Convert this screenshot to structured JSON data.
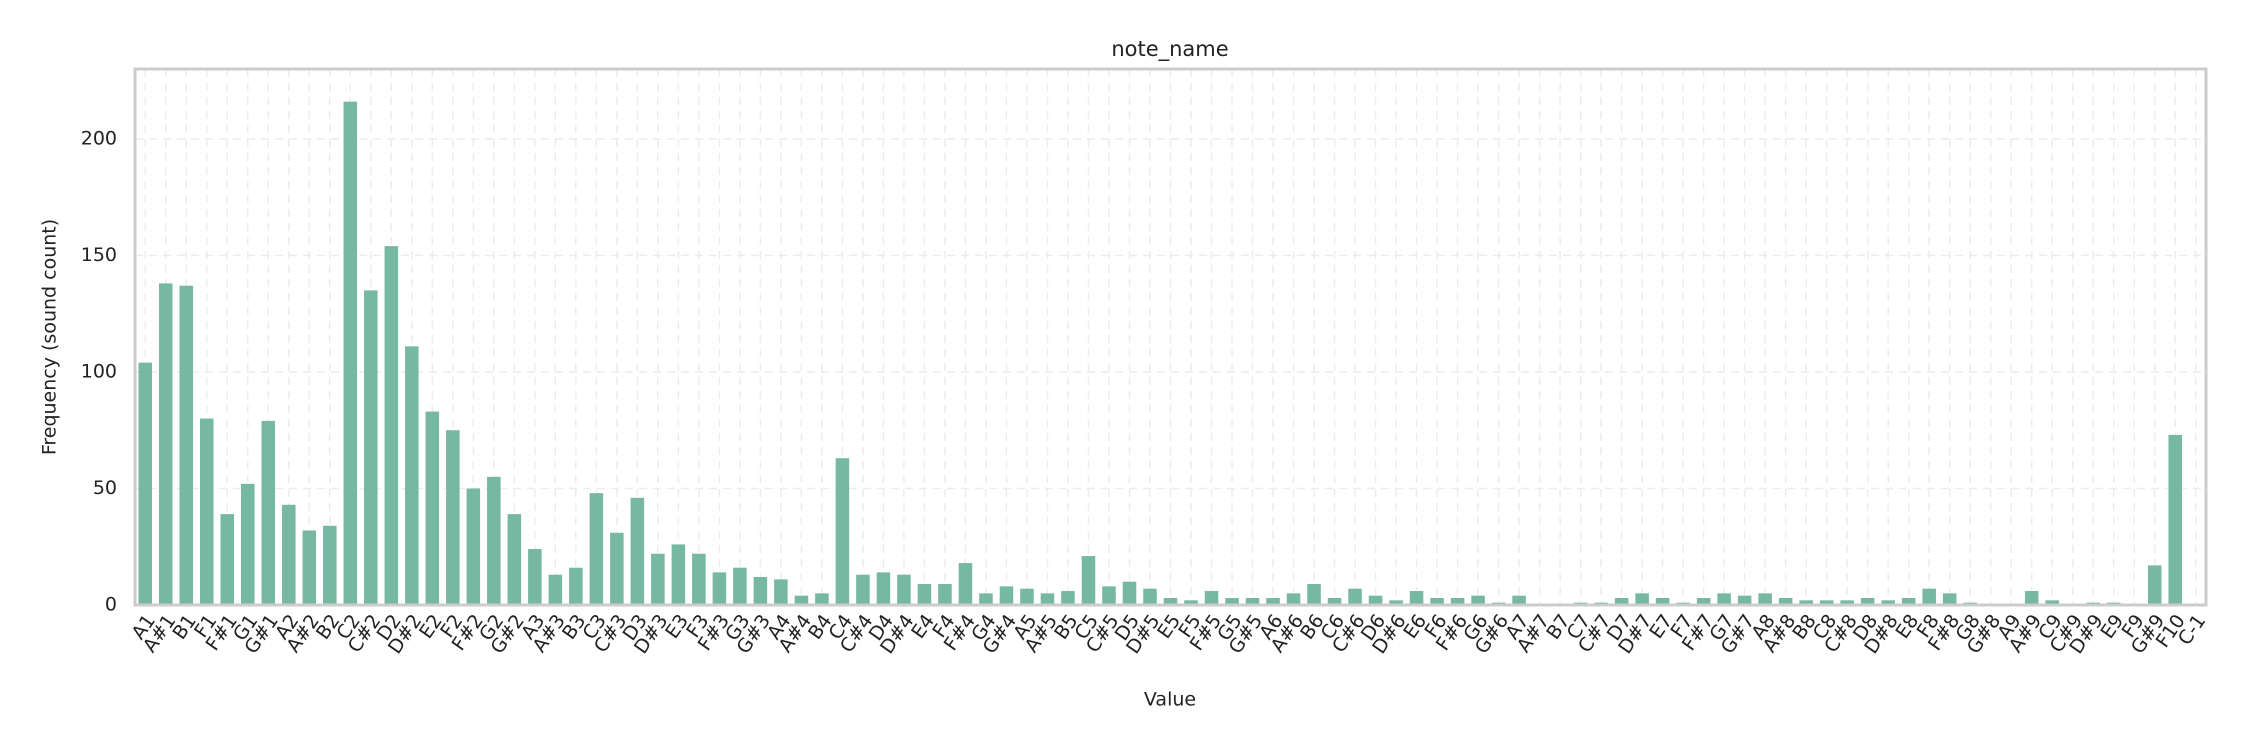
{
  "chart_data": {
    "type": "bar",
    "title": "note_name",
    "xlabel": "Value",
    "ylabel": "Frequency (sound count)",
    "categories": [
      "A1",
      "A#1",
      "B1",
      "F1",
      "F#1",
      "G1",
      "G#1",
      "A2",
      "A#2",
      "B2",
      "C2",
      "C#2",
      "D2",
      "D#2",
      "E2",
      "F2",
      "F#2",
      "G2",
      "G#2",
      "A3",
      "A#3",
      "B3",
      "C3",
      "C#3",
      "D3",
      "D#3",
      "E3",
      "F3",
      "F#3",
      "G3",
      "G#3",
      "A4",
      "A#4",
      "B4",
      "C4",
      "C#4",
      "D4",
      "D#4",
      "E4",
      "F4",
      "F#4",
      "G4",
      "G#4",
      "A5",
      "A#5",
      "B5",
      "C5",
      "C#5",
      "D5",
      "D#5",
      "E5",
      "F5",
      "F#5",
      "G5",
      "G#5",
      "A6",
      "A#6",
      "B6",
      "C6",
      "C#6",
      "D6",
      "D#6",
      "E6",
      "F6",
      "F#6",
      "G6",
      "G#6",
      "A7",
      "A#7",
      "B7",
      "C7",
      "C#7",
      "D7",
      "D#7",
      "E7",
      "F7",
      "F#7",
      "G7",
      "G#7",
      "A8",
      "A#8",
      "B8",
      "C8",
      "C#8",
      "D8",
      "D#8",
      "E8",
      "F8",
      "F#8",
      "G8",
      "G#8",
      "A9",
      "A#9",
      "C9",
      "C#9",
      "D#9",
      "E9",
      "F9",
      "G#9",
      "F10",
      "C-1"
    ],
    "values": [
      104,
      138,
      137,
      80,
      39,
      52,
      79,
      43,
      32,
      34,
      216,
      135,
      154,
      111,
      83,
      75,
      50,
      55,
      39,
      24,
      13,
      16,
      48,
      31,
      46,
      22,
      26,
      22,
      14,
      16,
      12,
      11,
      4,
      5,
      63,
      13,
      14,
      13,
      9,
      9,
      18,
      5,
      8,
      7,
      5,
      6,
      21,
      8,
      10,
      7,
      3,
      2,
      6,
      3,
      3,
      3,
      5,
      9,
      3,
      7,
      4,
      2,
      6,
      3,
      3,
      4,
      1,
      4,
      0,
      0,
      1,
      1,
      3,
      5,
      3,
      1,
      3,
      5,
      4,
      5,
      3,
      2,
      2,
      2,
      3,
      2,
      3,
      7,
      5,
      1,
      0,
      0,
      6,
      2,
      0,
      1,
      1,
      0,
      17,
      73,
      0
    ],
    "color": "#76b8a2",
    "ylim": [
      0,
      230
    ],
    "yticks": [
      0,
      50,
      100,
      150,
      200
    ],
    "grid": true
  }
}
